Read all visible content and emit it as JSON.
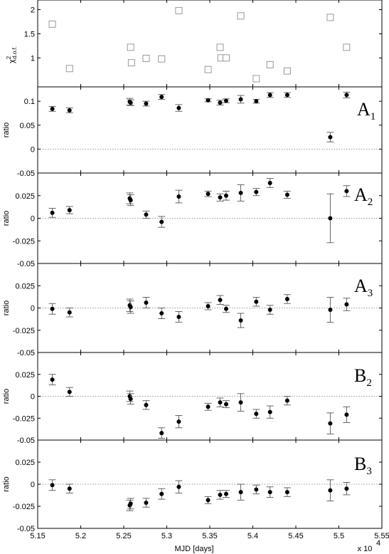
{
  "figure": {
    "xlabel": "MJD [days]",
    "x_multiplier": "x 10",
    "x_multiplier_exp": "4",
    "x_ticks": [
      "5.15",
      "5.2",
      "5.25",
      "5.3",
      "5.35",
      "5.4",
      "5.45",
      "5.5",
      "5.55"
    ]
  },
  "chart_data": [
    {
      "type": "scatter",
      "name": "chi2",
      "ylabel_main": "χ",
      "ylabel_sup": "2",
      "ylabel_sub": "d.o.f.",
      "xlim": [
        51500,
        55500
      ],
      "ylim": [
        0.4,
        2.2
      ],
      "yticks": [
        1,
        1.5,
        2
      ],
      "ytick_labels": [
        "1",
        "1.5",
        "2"
      ],
      "marker": "open-square",
      "marker_color": "#999999",
      "x": [
        51670,
        51870,
        52580,
        52590,
        52760,
        52940,
        53140,
        53480,
        53620,
        53630,
        53690,
        53860,
        54040,
        54200,
        54400,
        54900,
        55090
      ],
      "y": [
        1.7,
        0.78,
        1.22,
        0.9,
        0.99,
        0.98,
        1.98,
        0.76,
        1.22,
        1.0,
        1.0,
        1.87,
        0.57,
        0.86,
        0.73,
        1.84,
        1.22
      ]
    },
    {
      "type": "scatter",
      "name": "A1",
      "label_main": "A",
      "label_sub": "1",
      "ylabel": "ratio",
      "xlim": [
        51500,
        55500
      ],
      "ylim": [
        -0.05,
        0.13
      ],
      "yticks": [
        0.1,
        0.05,
        0,
        -0.05
      ],
      "ytick_labels": [
        "0.1",
        "0.05",
        "0",
        "-0.05"
      ],
      "x": [
        51670,
        51870,
        52570,
        52580,
        52760,
        52940,
        53140,
        53480,
        53620,
        53690,
        53860,
        54040,
        54200,
        54400,
        54900,
        55090
      ],
      "y": [
        0.084,
        0.081,
        0.099,
        0.097,
        0.095,
        0.109,
        0.086,
        0.102,
        0.097,
        0.101,
        0.104,
        0.1,
        0.113,
        0.113,
        0.025,
        0.113
      ],
      "err": [
        0.005,
        0.005,
        0.007,
        0.006,
        0.005,
        0.005,
        0.007,
        0.003,
        0.005,
        0.004,
        0.008,
        0.004,
        0.005,
        0.005,
        0.01,
        0.006
      ]
    },
    {
      "type": "scatter",
      "name": "A2",
      "label_main": "A",
      "label_sub": "2",
      "ylabel": "ratio",
      "xlim": [
        51500,
        55500
      ],
      "ylim": [
        -0.05,
        0.05
      ],
      "yticks": [
        0.025,
        0,
        -0.025,
        -0.05
      ],
      "ytick_labels": [
        "0.025",
        "0",
        "-0.025",
        "-0.05"
      ],
      "x": [
        51670,
        51870,
        52570,
        52580,
        52760,
        52940,
        53140,
        53480,
        53620,
        53690,
        53860,
        54040,
        54200,
        54400,
        54900,
        55090
      ],
      "y": [
        0.006,
        0.009,
        0.022,
        0.02,
        0.004,
        -0.004,
        0.024,
        0.027,
        0.023,
        0.025,
        0.028,
        0.029,
        0.039,
        0.026,
        0.0,
        0.03
      ],
      "err": [
        0.005,
        0.004,
        0.006,
        0.006,
        0.004,
        0.006,
        0.007,
        0.003,
        0.004,
        0.005,
        0.009,
        0.004,
        0.005,
        0.004,
        0.027,
        0.006
      ]
    },
    {
      "type": "scatter",
      "name": "A3",
      "label_main": "A",
      "label_sub": "3",
      "ylabel": "ratio",
      "xlim": [
        51500,
        55500
      ],
      "ylim": [
        -0.05,
        0.05
      ],
      "yticks": [
        0.025,
        0,
        -0.025,
        -0.05
      ],
      "ytick_labels": [
        "0.025",
        "0",
        "-0.025",
        "-0.05"
      ],
      "x": [
        51670,
        51870,
        52570,
        52580,
        52760,
        52940,
        53140,
        53480,
        53620,
        53690,
        53860,
        54040,
        54200,
        54400,
        54900,
        55090
      ],
      "y": [
        -0.001,
        -0.005,
        0.003,
        0.001,
        0.006,
        -0.006,
        -0.01,
        0.002,
        0.009,
        -0.001,
        -0.014,
        0.007,
        -0.002,
        0.01,
        -0.002,
        0.004
      ],
      "err": [
        0.006,
        0.005,
        0.007,
        0.007,
        0.006,
        0.006,
        0.006,
        0.004,
        0.005,
        0.004,
        0.008,
        0.005,
        0.005,
        0.005,
        0.014,
        0.007
      ]
    },
    {
      "type": "scatter",
      "name": "B2",
      "label_main": "B",
      "label_sub": "2",
      "ylabel": "ratio",
      "xlim": [
        51500,
        55500
      ],
      "ylim": [
        -0.05,
        0.05
      ],
      "yticks": [
        0.025,
        0,
        -0.025,
        -0.05
      ],
      "ytick_labels": [
        "0.025",
        "0",
        "-0.025",
        "-0.05"
      ],
      "x": [
        51670,
        51870,
        52570,
        52580,
        52760,
        52940,
        53140,
        53480,
        53620,
        53690,
        53860,
        54040,
        54200,
        54400,
        54900,
        55090
      ],
      "y": [
        0.019,
        0.005,
        0.0,
        -0.003,
        -0.01,
        -0.042,
        -0.029,
        -0.012,
        -0.007,
        -0.009,
        -0.007,
        -0.02,
        -0.018,
        -0.005,
        -0.031,
        -0.021
      ],
      "err": [
        0.006,
        0.005,
        0.006,
        0.006,
        0.005,
        0.006,
        0.007,
        0.004,
        0.005,
        0.004,
        0.01,
        0.005,
        0.007,
        0.005,
        0.012,
        0.009
      ]
    },
    {
      "type": "scatter",
      "name": "B3",
      "label_main": "B",
      "label_sub": "3",
      "ylabel": "ratio",
      "xlim": [
        51500,
        55500
      ],
      "ylim": [
        -0.05,
        0.05
      ],
      "yticks": [
        0.025,
        0,
        -0.025,
        -0.05
      ],
      "ytick_labels": [
        "0.025",
        "0",
        "-0.025",
        "-0.05"
      ],
      "x": [
        51670,
        51870,
        52570,
        52580,
        52760,
        52940,
        53140,
        53480,
        53620,
        53690,
        53860,
        54040,
        54200,
        54400,
        54900,
        55090
      ],
      "y": [
        -0.001,
        -0.005,
        -0.024,
        -0.022,
        -0.021,
        -0.011,
        -0.003,
        -0.018,
        -0.012,
        -0.011,
        -0.009,
        -0.006,
        -0.009,
        -0.009,
        -0.007,
        -0.005
      ],
      "err": [
        0.006,
        0.005,
        0.006,
        0.006,
        0.005,
        0.006,
        0.007,
        0.004,
        0.005,
        0.004,
        0.009,
        0.005,
        0.006,
        0.005,
        0.012,
        0.007
      ]
    }
  ]
}
